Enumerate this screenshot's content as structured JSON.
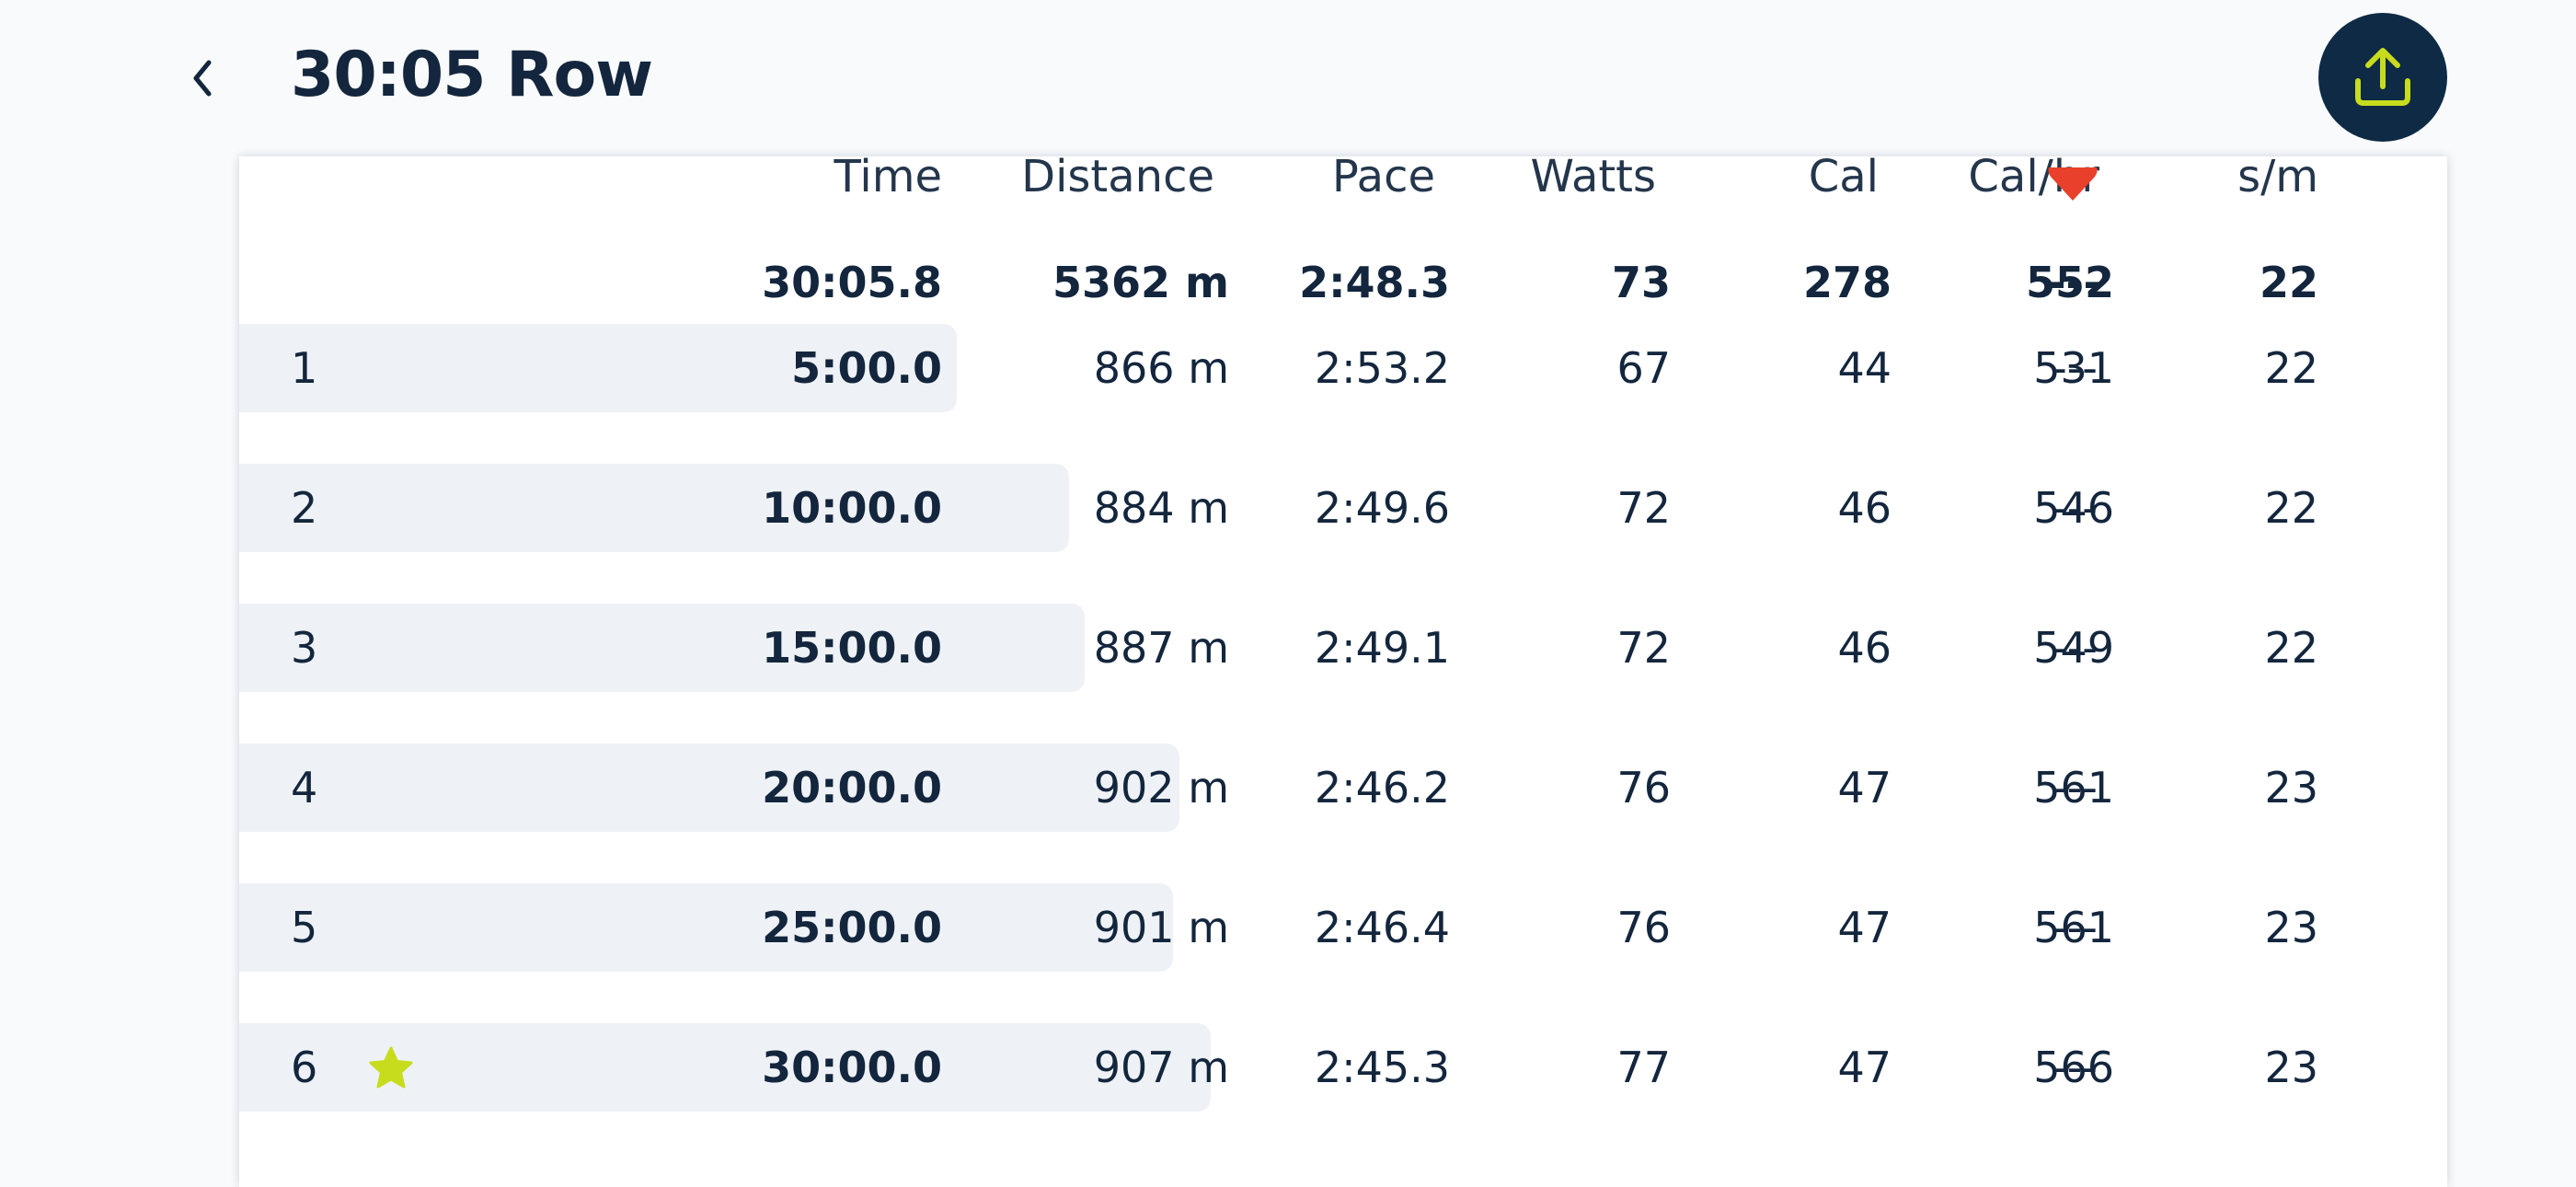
{
  "header": {
    "title": "30:05 Row",
    "back_icon": "chevron-left-icon",
    "share_icon": "upload-icon"
  },
  "colors": {
    "navy": "#0f2a45",
    "accent": "#c8dc1e",
    "bar": "#eef2f6",
    "heart": "#e8402a"
  },
  "table": {
    "columns": [
      "Time",
      "Distance",
      "Pace",
      "Watts",
      "Cal",
      "Cal/hr",
      "heart-icon",
      "s/m"
    ],
    "headers": {
      "time": "Time",
      "distance": "Distance",
      "pace": "Pace",
      "watts": "Watts",
      "cal": "Cal",
      "calhr": "Cal/hr",
      "sm": "s/m"
    },
    "heart_icon": "heart-icon",
    "totals": {
      "time": "30:05.8",
      "distance": "5362 m",
      "pace": "2:48.3",
      "watts": "73",
      "cal": "278",
      "calhr": "552",
      "hr": "---",
      "sm": "22"
    },
    "rows": [
      {
        "num": "1",
        "time": "5:00.0",
        "distance": "866 m",
        "pace": "2:53.2",
        "watts": "67",
        "cal": "44",
        "calhr": "531",
        "hr": "---",
        "sm": "22",
        "bar_fraction": 0.325
      },
      {
        "num": "2",
        "time": "10:00.0",
        "distance": "884 m",
        "pace": "2:49.6",
        "watts": "72",
        "cal": "46",
        "calhr": "546",
        "hr": "---",
        "sm": "22",
        "bar_fraction": 0.376
      },
      {
        "num": "3",
        "time": "15:00.0",
        "distance": "887 m",
        "pace": "2:49.1",
        "watts": "72",
        "cal": "46",
        "calhr": "549",
        "hr": "---",
        "sm": "22",
        "bar_fraction": 0.383
      },
      {
        "num": "4",
        "time": "20:00.0",
        "distance": "902 m",
        "pace": "2:46.2",
        "watts": "76",
        "cal": "47",
        "calhr": "561",
        "hr": "---",
        "sm": "23",
        "bar_fraction": 0.426
      },
      {
        "num": "5",
        "time": "25:00.0",
        "distance": "901 m",
        "pace": "2:46.4",
        "watts": "76",
        "cal": "47",
        "calhr": "561",
        "hr": "---",
        "sm": "23",
        "bar_fraction": 0.423
      },
      {
        "num": "6",
        "time": "30:00.0",
        "distance": "907 m",
        "pace": "2:45.3",
        "watts": "77",
        "cal": "47",
        "calhr": "566",
        "hr": "---",
        "sm": "23",
        "bar_fraction": 0.44,
        "best": true,
        "best_icon": "star-icon"
      }
    ]
  }
}
